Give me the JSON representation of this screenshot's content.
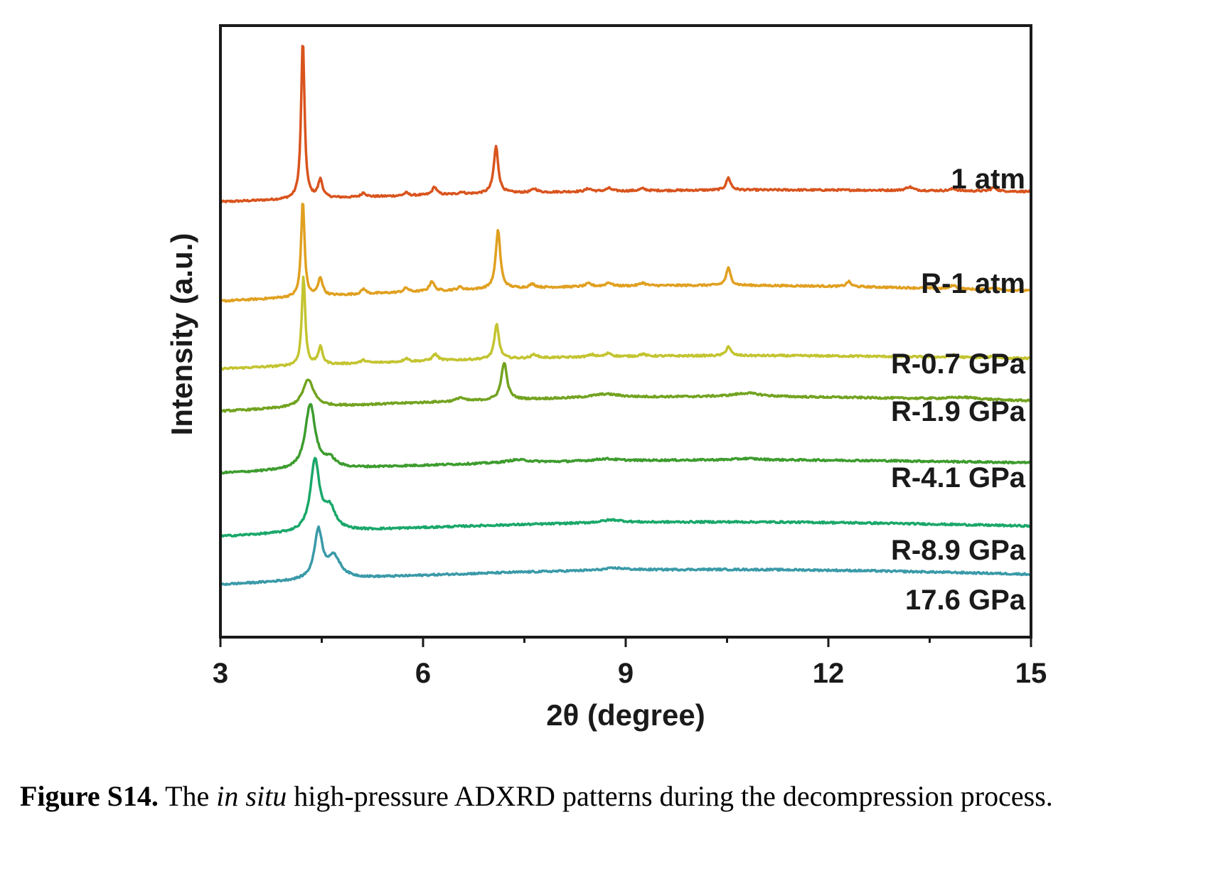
{
  "chart_data": {
    "type": "line",
    "xlabel": "2θ (degree)",
    "ylabel": "Intensity (a.u.)",
    "xlim": [
      3,
      15
    ],
    "xticks": [
      3,
      6,
      9,
      12,
      15
    ],
    "yticks_shown": false,
    "grid": false,
    "legend": "labels placed at right end of each trace",
    "series": [
      {
        "name": "1 atm",
        "color": "#d9541e",
        "baseline": 2.55,
        "drift": -0.08,
        "peaks": [
          [
            4.22,
            2.22,
            0.03
          ],
          [
            4.48,
            0.25,
            0.04
          ],
          [
            5.12,
            0.06,
            0.04
          ],
          [
            5.75,
            0.04,
            0.04
          ],
          [
            6.17,
            0.11,
            0.04
          ],
          [
            6.57,
            0.03,
            0.04
          ],
          [
            7.08,
            0.65,
            0.04
          ],
          [
            7.65,
            0.05,
            0.05
          ],
          [
            8.45,
            0.04,
            0.05
          ],
          [
            8.75,
            0.04,
            0.05
          ],
          [
            9.25,
            0.03,
            0.05
          ],
          [
            10.52,
            0.17,
            0.04
          ],
          [
            13.2,
            0.05,
            0.06
          ],
          [
            13.85,
            0.03,
            0.05
          ],
          [
            14.45,
            0.05,
            0.05
          ]
        ]
      },
      {
        "name": "R-1 atm",
        "color": "#e0a020",
        "baseline": 1.17,
        "drift": -0.14,
        "peaks": [
          [
            4.22,
            1.35,
            0.03
          ],
          [
            4.48,
            0.25,
            0.04
          ],
          [
            5.12,
            0.07,
            0.04
          ],
          [
            5.75,
            0.06,
            0.04
          ],
          [
            6.13,
            0.14,
            0.04
          ],
          [
            6.55,
            0.04,
            0.04
          ],
          [
            7.11,
            0.82,
            0.04
          ],
          [
            7.62,
            0.05,
            0.05
          ],
          [
            8.45,
            0.04,
            0.05
          ],
          [
            8.75,
            0.05,
            0.05
          ],
          [
            9.25,
            0.04,
            0.05
          ],
          [
            10.52,
            0.24,
            0.04
          ],
          [
            12.3,
            0.07,
            0.04
          ],
          [
            13.85,
            0.05,
            0.05
          ],
          [
            14.45,
            0.04,
            0.05
          ]
        ]
      },
      {
        "name": "R-0.7 GPa",
        "color": "#c3c430",
        "baseline": 0.23,
        "drift": -0.1,
        "peaks": [
          [
            4.23,
            1.24,
            0.03
          ],
          [
            4.48,
            0.24,
            0.04
          ],
          [
            5.12,
            0.04,
            0.05
          ],
          [
            5.75,
            0.05,
            0.04
          ],
          [
            6.18,
            0.09,
            0.05
          ],
          [
            7.09,
            0.48,
            0.04
          ],
          [
            7.65,
            0.05,
            0.05
          ],
          [
            8.5,
            0.03,
            0.06
          ],
          [
            8.75,
            0.05,
            0.05
          ],
          [
            9.25,
            0.03,
            0.05
          ],
          [
            10.52,
            0.13,
            0.04
          ],
          [
            13.85,
            0.03,
            0.05
          ],
          [
            14.45,
            0.03,
            0.05
          ]
        ]
      },
      {
        "name": "R-1.9 GPa",
        "color": "#72a320",
        "baseline": -0.36,
        "drift": -0.12,
        "peaks": [
          [
            4.3,
            0.38,
            0.1
          ],
          [
            6.55,
            0.05,
            0.06
          ],
          [
            7.2,
            0.52,
            0.05
          ],
          [
            8.7,
            0.05,
            0.25
          ],
          [
            10.8,
            0.05,
            0.25
          ],
          [
            14.0,
            0.03,
            0.3
          ]
        ]
      },
      {
        "name": "R-4.1 GPa",
        "color": "#3d9c2e",
        "baseline": -1.22,
        "drift": -0.1,
        "peaks": [
          [
            4.33,
            0.9,
            0.09
          ],
          [
            4.62,
            0.12,
            0.1
          ],
          [
            7.4,
            0.04,
            0.2
          ],
          [
            8.7,
            0.03,
            0.2
          ],
          [
            10.8,
            0.02,
            0.2
          ]
        ]
      },
      {
        "name": "R-8.9 GPa",
        "color": "#1aa86a",
        "baseline": -2.1,
        "drift": -0.12,
        "peaks": [
          [
            4.4,
            0.98,
            0.08
          ],
          [
            4.62,
            0.3,
            0.1
          ],
          [
            8.8,
            0.04,
            0.2
          ]
        ]
      },
      {
        "name": "17.6 GPa",
        "color": "#3a9aa8",
        "baseline": -2.77,
        "drift": -0.13,
        "peaks": [
          [
            4.45,
            0.67,
            0.07
          ],
          [
            4.68,
            0.3,
            0.12
          ],
          [
            8.85,
            0.03,
            0.2
          ]
        ]
      }
    ]
  },
  "caption": {
    "label": "Figure S14.",
    "part1": " The ",
    "italic": "in situ",
    "part2": " high-pressure ADXRD patterns during the decompression process."
  }
}
